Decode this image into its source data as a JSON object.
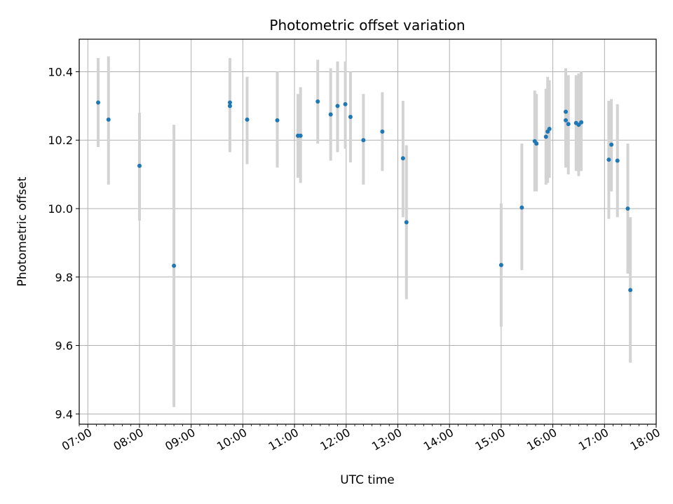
{
  "chart_data": {
    "type": "scatter",
    "title": "Photometric offset variation",
    "xlabel": "UTC time",
    "ylabel": "Photometric offset",
    "x_range": [
      "06:50",
      "18:00"
    ],
    "ylim": [
      9.37,
      10.495
    ],
    "grid": true,
    "x_ticks": [
      "07:00",
      "08:00",
      "09:00",
      "10:00",
      "11:00",
      "12:00",
      "13:00",
      "14:00",
      "15:00",
      "16:00",
      "17:00",
      "18:00"
    ],
    "y_ticks": [
      9.4,
      9.6,
      9.8,
      10.0,
      10.2,
      10.4
    ],
    "y_tick_labels": [
      "9.4",
      "9.6",
      "9.8",
      "10.0",
      "10.2",
      "10.4"
    ],
    "point_color": "#1f77b4",
    "errorbar_color": "#d3d3d3",
    "points": [
      {
        "x": "07:12",
        "y": 10.31,
        "ylow": 10.18,
        "yhigh": 10.44
      },
      {
        "x": "07:24",
        "y": 10.26,
        "ylow": 10.07,
        "yhigh": 10.445
      },
      {
        "x": "08:00",
        "y": 10.125,
        "ylow": 9.965,
        "yhigh": 10.28
      },
      {
        "x": "08:40",
        "y": 9.833,
        "ylow": 9.42,
        "yhigh": 10.245
      },
      {
        "x": "09:45",
        "y": 10.31,
        "ylow": 10.17,
        "yhigh": 10.44
      },
      {
        "x": "09:45",
        "y": 10.3,
        "ylow": 10.165,
        "yhigh": 10.43
      },
      {
        "x": "10:05",
        "y": 10.26,
        "ylow": 10.13,
        "yhigh": 10.385
      },
      {
        "x": "10:40",
        "y": 10.258,
        "ylow": 10.12,
        "yhigh": 10.4
      },
      {
        "x": "11:04",
        "y": 10.213,
        "ylow": 10.09,
        "yhigh": 10.335
      },
      {
        "x": "11:07",
        "y": 10.213,
        "ylow": 10.075,
        "yhigh": 10.355
      },
      {
        "x": "11:27",
        "y": 10.313,
        "ylow": 10.19,
        "yhigh": 10.435
      },
      {
        "x": "11:42",
        "y": 10.275,
        "ylow": 10.14,
        "yhigh": 10.41
      },
      {
        "x": "11:50",
        "y": 10.3,
        "ylow": 10.165,
        "yhigh": 10.43
      },
      {
        "x": "11:59",
        "y": 10.305,
        "ylow": 10.175,
        "yhigh": 10.43
      },
      {
        "x": "12:05",
        "y": 10.268,
        "ylow": 10.135,
        "yhigh": 10.4
      },
      {
        "x": "12:20",
        "y": 10.2,
        "ylow": 10.07,
        "yhigh": 10.335
      },
      {
        "x": "12:42",
        "y": 10.225,
        "ylow": 10.11,
        "yhigh": 10.34
      },
      {
        "x": "13:06",
        "y": 10.147,
        "ylow": 9.975,
        "yhigh": 10.315
      },
      {
        "x": "13:10",
        "y": 9.96,
        "ylow": 9.735,
        "yhigh": 10.185
      },
      {
        "x": "15:00",
        "y": 9.835,
        "ylow": 9.655,
        "yhigh": 10.015
      },
      {
        "x": "15:24",
        "y": 10.003,
        "ylow": 9.82,
        "yhigh": 10.19
      },
      {
        "x": "15:39",
        "y": 10.197,
        "ylow": 10.05,
        "yhigh": 10.345
      },
      {
        "x": "15:41",
        "y": 10.19,
        "ylow": 10.05,
        "yhigh": 10.335
      },
      {
        "x": "15:52",
        "y": 10.21,
        "ylow": 10.07,
        "yhigh": 10.35
      },
      {
        "x": "15:54",
        "y": 10.225,
        "ylow": 10.075,
        "yhigh": 10.385
      },
      {
        "x": "15:56",
        "y": 10.233,
        "ylow": 10.09,
        "yhigh": 10.375
      },
      {
        "x": "16:15",
        "y": 10.283,
        "ylow": 10.125,
        "yhigh": 10.41
      },
      {
        "x": "16:15",
        "y": 10.258,
        "ylow": 10.12,
        "yhigh": 10.4
      },
      {
        "x": "16:18",
        "y": 10.247,
        "ylow": 10.1,
        "yhigh": 10.39
      },
      {
        "x": "16:27",
        "y": 10.25,
        "ylow": 10.11,
        "yhigh": 10.39
      },
      {
        "x": "16:30",
        "y": 10.245,
        "ylow": 10.095,
        "yhigh": 10.395
      },
      {
        "x": "16:33",
        "y": 10.252,
        "ylow": 10.11,
        "yhigh": 10.4
      },
      {
        "x": "17:05",
        "y": 10.143,
        "ylow": 9.97,
        "yhigh": 10.315
      },
      {
        "x": "17:08",
        "y": 10.187,
        "ylow": 10.05,
        "yhigh": 10.32
      },
      {
        "x": "17:15",
        "y": 10.14,
        "ylow": 9.975,
        "yhigh": 10.305
      },
      {
        "x": "17:27",
        "y": 10.0,
        "ylow": 9.81,
        "yhigh": 10.19
      },
      {
        "x": "17:30",
        "y": 9.762,
        "ylow": 9.55,
        "yhigh": 9.975
      }
    ]
  }
}
